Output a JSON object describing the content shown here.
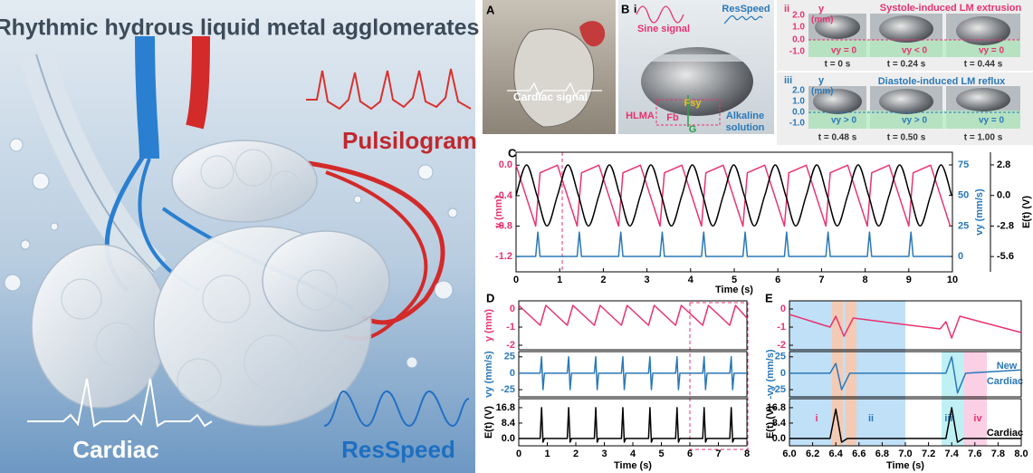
{
  "figure": {
    "title": "Rhythmic hydrous liquid metal agglomerates",
    "left_labels": {
      "pulsilogram": "Pulsilogram",
      "cardiac": "Cardiac",
      "resspeed": "ResSpeed"
    },
    "panel_a": {
      "letter": "A",
      "label": "Cardiac signal"
    },
    "panel_b": {
      "letter": "B",
      "sub": "i",
      "sine": "Sine signal",
      "resspeed": "ResSpeed",
      "hlma": "HLMA",
      "fb": "Fb",
      "fsy": "Fsy",
      "g": "G",
      "solution": [
        "Alkaline",
        "solution"
      ]
    },
    "panel_ii": {
      "sub": "ii",
      "axis": "y",
      "unit": "(mm)",
      "title": "Systole-induced LM extrusion",
      "ticks": [
        "2.0",
        "1.0",
        "0.0",
        "-1.0"
      ],
      "frames": [
        {
          "time": "t = 0 s",
          "velocity": "vy = 0"
        },
        {
          "time": "t = 0.24 s",
          "velocity": "vy < 0"
        },
        {
          "time": "t = 0.44 s",
          "velocity": "vy = 0"
        }
      ]
    },
    "panel_iii": {
      "sub": "iii",
      "axis": "y",
      "unit": "(mm)",
      "title": "Diastole-induced LM reflux",
      "ticks": [
        "2.0",
        "1.0",
        "0.0",
        "-1.0"
      ],
      "frames": [
        {
          "time": "t = 0.48 s",
          "velocity": "vy > 0"
        },
        {
          "time": "t = 0.50 s",
          "velocity": "vy > 0"
        },
        {
          "time": "t = 1.00 s",
          "velocity": "vy = 0"
        }
      ]
    },
    "panel_c": {
      "letter": "C"
    },
    "panel_d": {
      "letter": "D"
    },
    "panel_e": {
      "letter": "E",
      "new": "New",
      "cardiac_mid": "Cardiac",
      "cardiac_bottom": "Cardiac",
      "phases": [
        "i",
        "ii",
        "iii",
        "iv"
      ]
    }
  },
  "chart_data": [
    {
      "type": "line",
      "xlabel": "Time (s)",
      "ylabel": "y (mm)",
      "y2label": "vy (mm/s)",
      "y3label": "E(t) (V)",
      "xlim": [
        0,
        10
      ],
      "xticks": [
        0,
        1,
        2,
        3,
        4,
        5,
        6,
        7,
        8,
        9,
        10
      ],
      "ylim": [
        -1.4,
        0.17
      ],
      "yticks": [
        {
          "value": 0,
          "label": "0.0"
        },
        -0.4,
        -0.8,
        -1.2
      ],
      "y2lim": [
        -12.6,
        85.4
      ],
      "y2ticks": [
        75,
        50,
        25,
        0
      ],
      "y3lim": [
        -7.0,
        3.96
      ],
      "y3ticks": [
        2.8,
        {
          "value": 0,
          "label": "0.0"
        },
        -2.8,
        -5.6
      ],
      "series": [
        {
          "color": "#e8336f",
          "axis": "y",
          "x": [
            0,
            0.45,
            0.55,
            0.95,
            1.4,
            1.5,
            1.9,
            2.35,
            2.45,
            2.85,
            3.3,
            3.4,
            3.8,
            4.25,
            4.35,
            4.75,
            5.2,
            5.3,
            5.7,
            6.15,
            6.25,
            6.65,
            7.1,
            7.2,
            7.6,
            8.05,
            8.15,
            8.55,
            9.0,
            9.1,
            9.5,
            9.95
          ],
          "values": [
            0,
            -0.8,
            -0.1,
            0,
            -0.8,
            -0.1,
            0,
            -0.8,
            -0.1,
            0,
            -0.8,
            -0.1,
            0,
            -0.8,
            -0.1,
            0,
            -0.8,
            -0.1,
            0,
            -0.8,
            -0.1,
            0,
            -0.8,
            -0.1,
            0,
            -0.8,
            -0.1,
            0,
            -0.8,
            -0.1,
            0,
            -0.8
          ]
        },
        {
          "color": "#2a78b8",
          "axis": "y2",
          "x": [
            0,
            0.45,
            0.5,
            0.55,
            1.4,
            1.45,
            1.5,
            2.35,
            2.4,
            2.45,
            3.3,
            3.35,
            3.4,
            4.25,
            4.3,
            4.35,
            5.2,
            5.25,
            5.3,
            6.15,
            6.2,
            6.25,
            7.1,
            7.15,
            7.2,
            8.05,
            8.1,
            8.15,
            9.0,
            9.05,
            9.1,
            9.95
          ],
          "values": [
            0,
            0,
            20,
            0,
            0,
            20,
            0,
            0,
            20,
            0,
            0,
            20,
            0,
            0,
            20,
            0,
            0,
            20,
            0,
            0,
            20,
            0,
            0,
            20,
            0,
            0,
            20,
            0,
            0,
            20,
            0,
            0
          ]
        },
        {
          "color": "#000000",
          "axis": "y3",
          "smooth": true,
          "x": [
            0,
            0.24,
            0.48,
            0.71,
            0.95,
            1.19,
            1.43,
            1.66,
            1.9,
            2.14,
            2.38,
            2.61,
            2.85,
            3.09,
            3.33,
            3.56,
            3.8,
            4.04,
            4.28,
            4.51,
            4.75,
            4.99,
            5.23,
            5.46,
            5.7,
            5.94,
            6.18,
            6.41,
            6.65,
            6.89,
            7.13,
            7.36,
            7.6,
            7.84,
            8.08,
            8.31,
            8.55,
            8.79,
            9.03,
            9.26,
            9.5,
            9.74,
            9.98
          ],
          "values": [
            0,
            2.8,
            0,
            -2.8,
            0,
            2.8,
            0,
            -2.8,
            0,
            2.8,
            0,
            -2.8,
            0,
            2.8,
            0,
            -2.8,
            0,
            2.8,
            0,
            -2.8,
            0,
            2.8,
            0,
            -2.8,
            0,
            2.8,
            0,
            -2.8,
            0,
            2.8,
            0,
            -2.8,
            0,
            2.8,
            0,
            -2.8,
            0,
            2.8,
            0,
            -2.8,
            0,
            2.8,
            0
          ]
        }
      ]
    },
    {
      "type": "line",
      "ylabel": "y (mm)",
      "xlim": [
        0,
        8
      ],
      "ylim": [
        -2.25,
        0.45
      ],
      "yticks": [
        0,
        -1,
        -2
      ],
      "series": [
        {
          "color": "#e8336f",
          "x": [
            0,
            0.75,
            0.95,
            1.7,
            1.9,
            2.65,
            2.85,
            3.6,
            3.8,
            4.55,
            4.75,
            5.5,
            5.7,
            6.45,
            6.65,
            7.4,
            7.6,
            8.0
          ],
          "values": [
            0.2,
            -0.9,
            0.2,
            -0.9,
            0.2,
            -0.9,
            0.2,
            -0.9,
            0.2,
            -0.9,
            0.2,
            -0.9,
            0.2,
            -0.9,
            0.2,
            -0.9,
            0.2,
            -0.5
          ]
        }
      ]
    },
    {
      "type": "line",
      "ylabel": "vy (mm/s)",
      "xlim": [
        0,
        8
      ],
      "ylim": [
        -36,
        33
      ],
      "yticks": [
        25,
        0,
        -25
      ],
      "series": [
        {
          "color": "#2a78b8",
          "x": [
            0,
            0.75,
            0.8,
            0.85,
            0.9,
            1.7,
            1.75,
            1.8,
            1.85,
            2.65,
            2.7,
            2.75,
            2.8,
            3.6,
            3.65,
            3.7,
            3.75,
            4.55,
            4.6,
            4.65,
            4.7,
            5.5,
            5.55,
            5.6,
            5.65,
            6.45,
            6.5,
            6.55,
            6.6,
            7.4,
            7.45,
            7.5,
            7.55,
            8.0
          ],
          "values": [
            0,
            0,
            25,
            -25,
            0,
            0,
            25,
            -25,
            0,
            0,
            25,
            -25,
            0,
            0,
            25,
            -25,
            0,
            0,
            25,
            -25,
            0,
            0,
            25,
            -25,
            0,
            0,
            25,
            -25,
            0,
            0,
            25,
            -25,
            0,
            0
          ]
        }
      ]
    },
    {
      "type": "line",
      "xlabel": "Time (s)",
      "ylabel": "E(t) (V)",
      "xlim": [
        0,
        8
      ],
      "xticks": [
        0,
        1,
        2,
        3,
        4,
        5,
        6,
        7,
        8
      ],
      "ylim": [
        -4,
        21.7
      ],
      "yticks": [
        16.8,
        8.4,
        {
          "value": 0,
          "label": "0.0"
        }
      ],
      "series": [
        {
          "color": "#000000",
          "x": [
            0,
            0.75,
            0.8,
            0.85,
            0.9,
            1.7,
            1.75,
            1.8,
            1.85,
            2.65,
            2.7,
            2.75,
            2.8,
            3.6,
            3.65,
            3.7,
            3.75,
            4.55,
            4.6,
            4.65,
            4.7,
            5.5,
            5.55,
            5.6,
            5.65,
            6.45,
            6.5,
            6.55,
            6.6,
            7.4,
            7.45,
            7.5,
            7.55,
            8.0
          ],
          "values": [
            0,
            0,
            16.8,
            -2,
            0,
            0,
            16.8,
            -2,
            0,
            0,
            16.8,
            -2,
            0,
            0,
            16.8,
            -2,
            0,
            0,
            16.8,
            -2,
            0,
            0,
            16.8,
            -2,
            0,
            0,
            16.8,
            -2,
            0,
            0,
            16.8,
            -2,
            0,
            0
          ]
        }
      ]
    },
    {
      "type": "line",
      "xlim": [
        6,
        8
      ],
      "ylim": [
        -2.25,
        0.45
      ],
      "yticks": [
        0,
        -1,
        -2
      ],
      "series": [
        {
          "color": "#e8336f",
          "x": [
            6.0,
            6.35,
            6.4,
            6.47,
            6.55,
            7.3,
            7.35,
            7.4,
            7.47,
            8.0
          ],
          "values": [
            -0.3,
            -1.0,
            -0.4,
            -1.5,
            -0.5,
            -1.1,
            -0.7,
            -1.6,
            -0.4,
            -1.3
          ]
        }
      ]
    },
    {
      "type": "line",
      "ylabel": "-vy (mm/s)",
      "xlim": [
        6,
        8
      ],
      "ylim": [
        -36,
        33
      ],
      "yticks": [
        25,
        0,
        -25
      ],
      "series": [
        {
          "color": "#2a78b8",
          "x": [
            6.0,
            6.35,
            6.4,
            6.45,
            6.52,
            7.35,
            7.4,
            7.45,
            7.52,
            8.0
          ],
          "values": [
            0,
            0,
            15,
            -25,
            0,
            0,
            25,
            -30,
            0,
            5
          ]
        }
      ]
    },
    {
      "type": "line",
      "xlabel": "Time (s)",
      "ylabel": "E(t) (V)",
      "xlim": [
        6,
        8
      ],
      "xticks": [
        {
          "value": 6,
          "label": "6.0"
        },
        6.2,
        6.4,
        6.6,
        6.8,
        {
          "value": 7,
          "label": "7.0"
        },
        7.2,
        7.4,
        7.6,
        7.8,
        {
          "value": 8,
          "label": "8.0"
        }
      ],
      "ylim": [
        -4,
        21.7
      ],
      "yticks": [
        16.8,
        8.4,
        {
          "value": 0,
          "label": "0.0"
        }
      ],
      "series": [
        {
          "color": "#000000",
          "x": [
            6.0,
            6.35,
            6.4,
            6.45,
            6.5,
            7.35,
            7.4,
            7.45,
            7.5,
            8.0
          ],
          "values": [
            0,
            0,
            16,
            -2,
            0,
            0,
            16.8,
            -2,
            0,
            0
          ]
        }
      ]
    }
  ]
}
